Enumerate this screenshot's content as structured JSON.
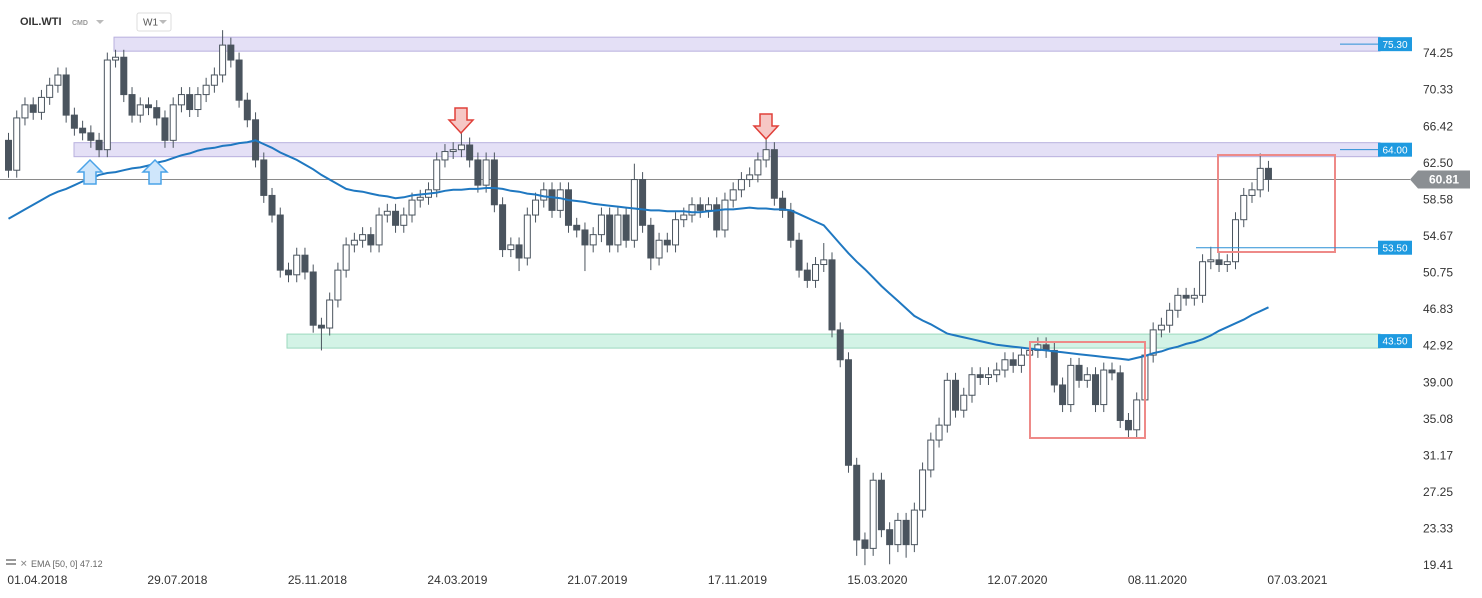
{
  "header": {
    "symbol": "OIL.WTI",
    "market": "CMD",
    "interval": "W1"
  },
  "chart_data": {
    "type": "candlestick",
    "categories": [
      null,
      null,
      null,
      null,
      "01.04.2018",
      null,
      null,
      null,
      null,
      null,
      null,
      null,
      null,
      null,
      null,
      null,
      null,
      null,
      null,
      null,
      null,
      "29.07.2018",
      null,
      null,
      null,
      null,
      null,
      null,
      null,
      null,
      null,
      null,
      null,
      null,
      null,
      null,
      null,
      null,
      "25.11.2018",
      null,
      null,
      null,
      null,
      null,
      null,
      null,
      null,
      null,
      null,
      null,
      null,
      null,
      null,
      null,
      null,
      "24.03.2019",
      null,
      null,
      null,
      null,
      null,
      null,
      null,
      null,
      null,
      null,
      null,
      null,
      null,
      null,
      null,
      null,
      "21.07.2019",
      null,
      null,
      null,
      null,
      null,
      null,
      null,
      null,
      null,
      null,
      null,
      null,
      null,
      null,
      null,
      null,
      "17.11.2019",
      null,
      null,
      null,
      null,
      null,
      null,
      null,
      null,
      null,
      null,
      null,
      null,
      null,
      null,
      null,
      null,
      "15.03.2020",
      null,
      null,
      null,
      null,
      null,
      null,
      null,
      null,
      null,
      null,
      null,
      null,
      null,
      null,
      null,
      null,
      "12.07.2020",
      null,
      null,
      null,
      null,
      null,
      null,
      null,
      null,
      null,
      null,
      null,
      null,
      null,
      null,
      null,
      null,
      "08.11.2020",
      null,
      null,
      null,
      null,
      null,
      null,
      null,
      null,
      null,
      null,
      null,
      null,
      null,
      null,
      null,
      null,
      "07.03.2021"
    ],
    "open": [
      65.0,
      61.8,
      67.4,
      68.8,
      68.0,
      69.6,
      70.9,
      72.0,
      67.7,
      66.3,
      65.8,
      65.0,
      64.0,
      73.6,
      73.9,
      69.9,
      67.7,
      68.8,
      68.5,
      67.4,
      65.0,
      68.8,
      69.9,
      68.3,
      69.9,
      70.9,
      72.0,
      75.2,
      73.6,
      69.3,
      67.2,
      62.9,
      59.1,
      57.0,
      51.1,
      50.6,
      52.7,
      50.9,
      45.2,
      44.9,
      47.9,
      51.1,
      53.8,
      54.3,
      54.9,
      53.8,
      57.0,
      57.4,
      55.9,
      57.0,
      58.6,
      58.9,
      59.7,
      62.9,
      63.8,
      64.0,
      64.5,
      62.9,
      60.2,
      62.9,
      58.1,
      53.3,
      53.8,
      52.4,
      57.0,
      58.6,
      59.7,
      57.5,
      59.7,
      55.9,
      55.4,
      53.8,
      54.9,
      57.0,
      53.8,
      57.0,
      54.3,
      60.8,
      55.9,
      52.4,
      54.3,
      53.8,
      56.5,
      57.0,
      58.1,
      57.5,
      58.1,
      55.4,
      58.6,
      59.7,
      60.8,
      61.3,
      62.9,
      64.0,
      58.8,
      57.5,
      54.3,
      51.1,
      50.0,
      51.7,
      52.2,
      44.7,
      41.5,
      30.2,
      22.2,
      21.3,
      28.6,
      23.3,
      21.7,
      24.3,
      21.7,
      25.4,
      29.7,
      32.9,
      34.5,
      39.3,
      36.1,
      37.7,
      39.9,
      39.6,
      39.9,
      40.4,
      41.5,
      40.9,
      42.0,
      42.5,
      43.1,
      42.5,
      38.8,
      36.7,
      40.9,
      39.3,
      39.9,
      36.7,
      40.4,
      40.1,
      35.0,
      34.0,
      37.2,
      42.0,
      44.7,
      45.2,
      46.8,
      48.4,
      48.1,
      48.4,
      52.0,
      52.2,
      51.7,
      52.0,
      56.5,
      59.1,
      59.7,
      62.0,
      null,
      null,
      null,
      null
    ],
    "high": [
      65.8,
      68.2,
      69.6,
      69.6,
      70.4,
      71.7,
      72.8,
      72.8,
      68.5,
      67.1,
      66.6,
      65.8,
      74.4,
      74.7,
      74.7,
      70.7,
      69.6,
      69.6,
      69.3,
      68.2,
      69.6,
      70.7,
      70.7,
      70.7,
      71.7,
      72.8,
      76.8,
      76.0,
      74.4,
      70.1,
      68.0,
      63.7,
      59.9,
      57.8,
      51.9,
      53.5,
      53.5,
      51.7,
      46.0,
      48.7,
      51.9,
      54.6,
      55.1,
      55.7,
      55.7,
      57.8,
      58.2,
      58.2,
      57.8,
      59.4,
      59.7,
      60.5,
      63.7,
      64.6,
      64.8,
      66.5,
      65.3,
      63.7,
      63.7,
      63.7,
      58.9,
      54.6,
      54.6,
      57.8,
      59.4,
      60.5,
      60.5,
      60.5,
      60.5,
      56.7,
      56.2,
      55.7,
      57.8,
      57.8,
      57.8,
      57.8,
      62.5,
      61.6,
      56.7,
      55.1,
      55.1,
      57.3,
      57.8,
      58.9,
      58.9,
      58.9,
      58.9,
      59.4,
      60.5,
      61.6,
      62.1,
      63.7,
      65.6,
      64.8,
      59.6,
      58.3,
      55.1,
      51.9,
      52.5,
      54.0,
      53.0,
      45.5,
      42.3,
      31.0,
      23.0,
      29.4,
      29.4,
      24.1,
      25.1,
      25.1,
      26.2,
      30.5,
      33.7,
      35.3,
      40.1,
      40.1,
      38.5,
      40.7,
      40.7,
      40.7,
      41.2,
      42.3,
      42.3,
      42.8,
      43.3,
      43.9,
      43.9,
      43.3,
      39.6,
      41.7,
      41.7,
      40.7,
      40.7,
      41.2,
      41.2,
      40.9,
      35.8,
      38.0,
      42.8,
      45.5,
      46.0,
      47.6,
      49.2,
      49.2,
      49.2,
      52.8,
      53.6,
      53.0,
      52.8,
      57.3,
      59.9,
      60.5,
      63.6,
      62.8,
      null,
      null,
      null,
      null
    ],
    "low": [
      61.0,
      61.0,
      66.6,
      67.2,
      67.2,
      68.8,
      70.1,
      66.9,
      65.5,
      65.0,
      64.2,
      63.2,
      63.2,
      72.8,
      69.1,
      66.9,
      66.9,
      67.7,
      66.6,
      64.2,
      64.2,
      68.0,
      67.5,
      67.5,
      69.1,
      70.1,
      71.2,
      72.8,
      68.5,
      66.4,
      62.1,
      58.3,
      56.2,
      50.3,
      49.8,
      49.8,
      50.1,
      44.4,
      42.5,
      44.1,
      47.1,
      50.3,
      53.0,
      53.5,
      53.0,
      53.0,
      56.2,
      55.1,
      55.1,
      56.2,
      57.8,
      58.1,
      58.9,
      62.1,
      63.0,
      63.2,
      62.1,
      59.4,
      59.4,
      57.3,
      52.5,
      52.5,
      51.0,
      51.6,
      56.2,
      57.8,
      56.7,
      56.7,
      55.1,
      54.6,
      51.0,
      53.0,
      54.1,
      53.0,
      53.0,
      53.5,
      53.5,
      55.1,
      51.1,
      51.6,
      53.0,
      53.0,
      55.7,
      56.2,
      56.7,
      56.7,
      54.6,
      54.6,
      57.8,
      58.9,
      60.0,
      60.5,
      62.1,
      58.0,
      56.7,
      53.5,
      50.3,
      49.2,
      49.2,
      50.9,
      43.9,
      40.7,
      29.4,
      20.5,
      19.5,
      20.5,
      22.5,
      19.6,
      20.9,
      20.3,
      20.9,
      24.6,
      28.9,
      32.1,
      33.7,
      35.3,
      35.3,
      36.9,
      38.8,
      38.8,
      39.1,
      39.6,
      40.1,
      40.1,
      41.2,
      41.7,
      41.7,
      38.0,
      35.9,
      35.9,
      38.5,
      38.5,
      35.9,
      35.9,
      39.3,
      34.2,
      33.2,
      33.2,
      36.4,
      41.2,
      43.9,
      44.4,
      46.0,
      47.3,
      47.3,
      47.6,
      51.2,
      50.9,
      50.9,
      51.2,
      55.7,
      58.3,
      58.9,
      59.5,
      null,
      null,
      null,
      null
    ],
    "close": [
      61.8,
      67.4,
      68.8,
      68.0,
      69.6,
      70.9,
      72.0,
      67.7,
      66.3,
      65.8,
      65.0,
      64.0,
      73.6,
      73.9,
      69.9,
      67.7,
      68.8,
      68.5,
      67.4,
      65.0,
      68.8,
      69.9,
      68.3,
      69.9,
      70.9,
      72.0,
      75.2,
      73.6,
      69.3,
      67.2,
      62.9,
      59.1,
      57.0,
      51.1,
      50.6,
      52.7,
      50.9,
      45.2,
      44.9,
      47.9,
      51.1,
      53.8,
      54.3,
      54.9,
      53.8,
      57.0,
      57.4,
      55.9,
      57.0,
      58.6,
      58.9,
      59.7,
      62.9,
      63.8,
      64.0,
      64.5,
      62.9,
      60.2,
      62.9,
      58.1,
      53.3,
      53.8,
      52.4,
      57.0,
      58.6,
      59.7,
      57.5,
      59.7,
      55.9,
      55.4,
      53.8,
      54.9,
      57.0,
      53.8,
      57.0,
      54.3,
      60.8,
      55.9,
      52.4,
      54.3,
      53.8,
      56.5,
      57.0,
      58.1,
      57.5,
      58.1,
      55.4,
      58.6,
      59.7,
      60.8,
      61.3,
      62.9,
      64.0,
      58.8,
      57.5,
      54.3,
      51.1,
      50.0,
      51.7,
      52.2,
      44.7,
      41.5,
      30.2,
      22.2,
      21.3,
      28.6,
      23.3,
      21.7,
      24.3,
      21.7,
      25.4,
      29.7,
      32.9,
      34.5,
      39.3,
      36.1,
      37.7,
      39.9,
      39.6,
      39.9,
      40.4,
      41.5,
      40.9,
      42.0,
      42.5,
      43.1,
      42.5,
      38.8,
      36.7,
      40.9,
      39.3,
      39.9,
      36.7,
      40.4,
      40.1,
      35.0,
      34.0,
      37.2,
      42.0,
      44.7,
      45.2,
      46.8,
      48.4,
      48.1,
      48.4,
      52.0,
      52.2,
      51.7,
      52.0,
      56.5,
      59.1,
      59.7,
      62.0,
      60.81,
      null,
      null,
      null,
      null
    ],
    "up_color": "#ffffff",
    "down_color": "#4a545e",
    "overlays": [
      {
        "name": "EMA [50, 0]",
        "color": "#1f78c1",
        "values": [
          56.6,
          57.1,
          57.6,
          58.1,
          58.6,
          59.1,
          59.5,
          59.8,
          60.2,
          60.6,
          60.9,
          61.3,
          61.5,
          61.6,
          61.8,
          62.0,
          62.1,
          62.3,
          62.6,
          62.8,
          63.1,
          63.4,
          63.6,
          63.9,
          64.1,
          64.2,
          64.4,
          64.5,
          64.7,
          64.8,
          65.0,
          64.6,
          64.2,
          63.7,
          63.3,
          62.9,
          62.4,
          61.9,
          61.3,
          60.8,
          60.3,
          59.8,
          59.6,
          59.5,
          59.3,
          59.1,
          59.0,
          58.8,
          58.9,
          59.1,
          59.2,
          59.3,
          59.4,
          59.6,
          59.7,
          59.7,
          59.8,
          59.8,
          59.9,
          59.9,
          59.8,
          59.6,
          59.5,
          59.3,
          59.2,
          59.0,
          58.9,
          58.8,
          58.6,
          58.5,
          58.4,
          58.2,
          58.1,
          58.0,
          57.9,
          57.8,
          57.7,
          57.6,
          57.5,
          57.5,
          57.4,
          57.4,
          57.4,
          57.3,
          57.3,
          57.4,
          57.5,
          57.6,
          57.6,
          57.7,
          57.8,
          57.7,
          57.7,
          57.6,
          57.6,
          57.5,
          57.1,
          56.7,
          56.3,
          55.9,
          54.9,
          53.9,
          52.9,
          52.0,
          51.2,
          50.3,
          49.4,
          48.6,
          47.8,
          47.0,
          46.2,
          45.7,
          45.3,
          44.8,
          44.3,
          44.1,
          43.9,
          43.7,
          43.5,
          43.3,
          43.1,
          43.0,
          42.9,
          42.8,
          42.7,
          42.6,
          42.5,
          42.4,
          42.3,
          42.2,
          42.1,
          42.0,
          41.9,
          41.8,
          41.7,
          41.6,
          41.5,
          41.7,
          41.9,
          42.2,
          42.4,
          42.7,
          42.9,
          43.2,
          43.4,
          43.7,
          44.1,
          44.6,
          45.0,
          45.4,
          45.8,
          46.3,
          46.7,
          47.12,
          null,
          null,
          null,
          null
        ]
      }
    ],
    "levels": [
      {
        "value": 75.3,
        "label": "75.30",
        "color": "#e4e0f6"
      },
      {
        "value": 64,
        "label": "64.00",
        "color": "#e4e0f6"
      },
      {
        "value": 53.5,
        "label": "53.50",
        "color": "#ffffff"
      },
      {
        "value": 43.5,
        "label": "43.50",
        "color": "#d3f3e6"
      }
    ],
    "ylim": [
      18.77,
      80.03
    ],
    "yticks": [
      74.25,
      70.33,
      66.42,
      {
        "value": 62.5,
        "label": "62.50"
      },
      58.58,
      54.67,
      50.75,
      46.83,
      42.92,
      {
        "value": 39,
        "label": "39.00"
      },
      35.08,
      31.17,
      27.25,
      23.33,
      19.41
    ],
    "grid": false
  }
}
